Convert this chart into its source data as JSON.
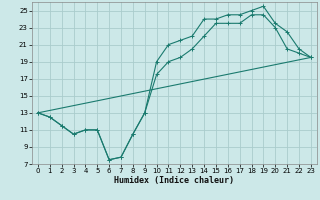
{
  "title": "",
  "xlabel": "Humidex (Indice chaleur)",
  "background_color": "#cce8e8",
  "grid_color": "#aacccc",
  "line_color": "#1a7a6e",
  "xlim": [
    -0.5,
    23.5
  ],
  "ylim": [
    7,
    26
  ],
  "xticks": [
    0,
    1,
    2,
    3,
    4,
    5,
    6,
    7,
    8,
    9,
    10,
    11,
    12,
    13,
    14,
    15,
    16,
    17,
    18,
    19,
    20,
    21,
    22,
    23
  ],
  "yticks": [
    7,
    9,
    11,
    13,
    15,
    17,
    19,
    21,
    23,
    25
  ],
  "series1_x": [
    0,
    1,
    2,
    3,
    4,
    5,
    6,
    7,
    8,
    9,
    10,
    11,
    12,
    13,
    14,
    15,
    16,
    17,
    18,
    19,
    20,
    21,
    22,
    23
  ],
  "series1_y": [
    13.0,
    12.5,
    11.5,
    10.5,
    11.0,
    11.0,
    7.5,
    7.8,
    10.5,
    13.0,
    19.0,
    21.0,
    21.5,
    22.0,
    24.0,
    24.0,
    24.5,
    24.5,
    25.0,
    25.5,
    23.5,
    22.5,
    20.5,
    19.5
  ],
  "series2_x": [
    0,
    1,
    2,
    3,
    4,
    5,
    6,
    7,
    8,
    9,
    10,
    11,
    12,
    13,
    14,
    15,
    16,
    17,
    18,
    19,
    20,
    21,
    22,
    23
  ],
  "series2_y": [
    13.0,
    12.5,
    11.5,
    10.5,
    11.0,
    11.0,
    7.5,
    7.8,
    10.5,
    13.0,
    17.5,
    19.0,
    19.5,
    20.5,
    22.0,
    23.5,
    23.5,
    23.5,
    24.5,
    24.5,
    23.0,
    20.5,
    20.0,
    19.5
  ],
  "series3_x": [
    0,
    23
  ],
  "series3_y": [
    13.0,
    19.5
  ]
}
